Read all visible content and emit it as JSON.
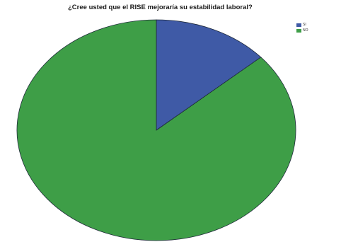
{
  "chart_data": {
    "type": "pie",
    "title": "¿Cree usted que el RISE mejoraría su estabilidad laboral?",
    "categories": [
      "SI",
      "NO"
    ],
    "values": [
      13.5,
      86.5
    ],
    "colors": [
      "#3f5aa6",
      "#3e9e47"
    ],
    "legend_position": "top-right",
    "start_angle_deg": 0,
    "direction": "clockwise"
  }
}
